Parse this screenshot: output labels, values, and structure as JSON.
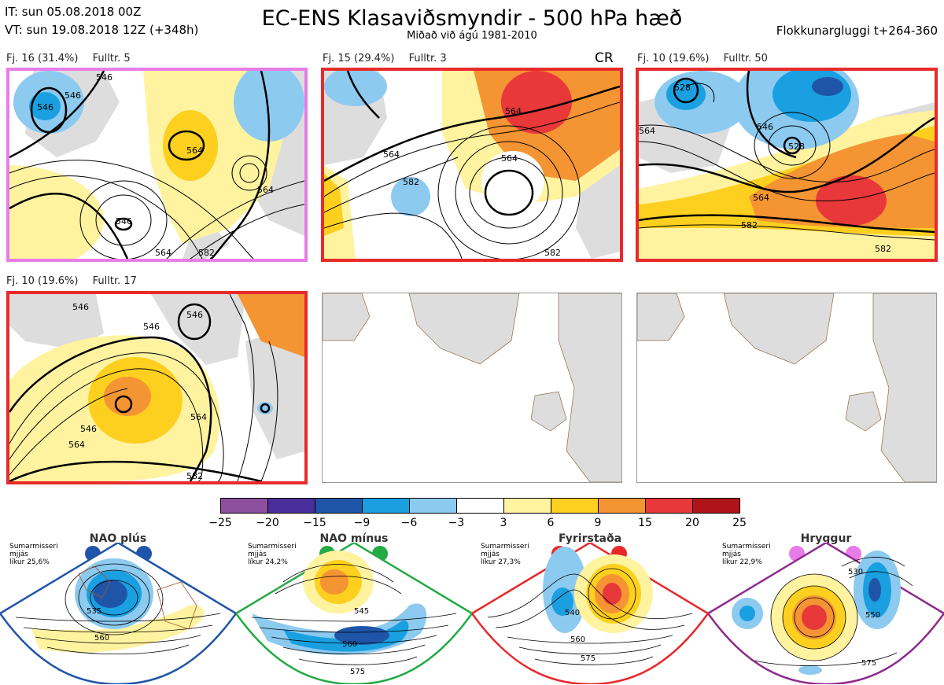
{
  "header": {
    "it_line": "IT: sun 05.08.2018 00Z",
    "vt_line": "VT: sun 19.08.2018 12Z  (+348h)",
    "title": "EC-ENS Klasaviðsmyndir - 500 hPa hæð",
    "subtitle": "Miðað við ágú 1981-2010",
    "window": "Flokkunargluggi t+264-360"
  },
  "panels": [
    {
      "label_a": "Fj. 16 (31.4%)",
      "label_b": "Fulltr. 5",
      "border": "#e87ce8",
      "extra": ""
    },
    {
      "label_a": "Fj. 15 (29.4%)",
      "label_b": "Fulltr. 3",
      "border": "#e82a2a",
      "extra": "CR"
    },
    {
      "label_a": "Fj. 10 (19.6%)",
      "label_b": "Fulltr. 50",
      "border": "#e82a2a",
      "extra": ""
    },
    {
      "label_a": "Fj. 10 (19.6%)",
      "label_b": "Fulltr. 17",
      "border": "#e82a2a",
      "extra": ""
    }
  ],
  "contour_labels": {
    "p1": [
      "546",
      "546",
      "546",
      "564",
      "546",
      "564",
      "564",
      "582"
    ],
    "p2": [
      "564",
      "564",
      "582",
      "564",
      "582"
    ],
    "p3": [
      "528",
      "546",
      "564",
      "528",
      "564",
      "582",
      "582"
    ],
    "p4": [
      "546",
      "546",
      "546",
      "564",
      "546",
      "564",
      "582"
    ]
  },
  "colorbar": {
    "colors": [
      "#8e4fa0",
      "#4a2f9c",
      "#1f55a8",
      "#1aa0e0",
      "#8ccaf0",
      "#ffffff",
      "#fff3a0",
      "#fdd020",
      "#f59433",
      "#e8383a",
      "#b0141a"
    ],
    "ticks": [
      "−25",
      "−20",
      "−15",
      "−9",
      "−6",
      "−3",
      "3",
      "6",
      "9",
      "15",
      "20",
      "25"
    ]
  },
  "regimes": [
    {
      "name": "NAO plús",
      "line1": "Sumarmisseri",
      "line2": "mjjás",
      "line3": "líkur 25,6%",
      "color": "#1f55a8",
      "labels": [
        "535",
        "560"
      ]
    },
    {
      "name": "NAO mínus",
      "line1": "Sumarmisseri",
      "line2": "mjjás",
      "line3": "líkur 24,2%",
      "color": "#22aa44",
      "labels": [
        "545",
        "560",
        "575"
      ]
    },
    {
      "name": "Fyrirstaða",
      "line1": "Sumarmisseri",
      "line2": "mjjás",
      "line3": "líkur 27,3%",
      "color": "#e8282a",
      "labels": [
        "540",
        "560",
        "575"
      ]
    },
    {
      "name": "Hryggur",
      "line1": "Sumarmisseri",
      "line2": "mjjás",
      "line3": "líkur 22,9%",
      "color": "#e87ce8",
      "labels": [
        "530",
        "550",
        "575"
      ]
    }
  ]
}
